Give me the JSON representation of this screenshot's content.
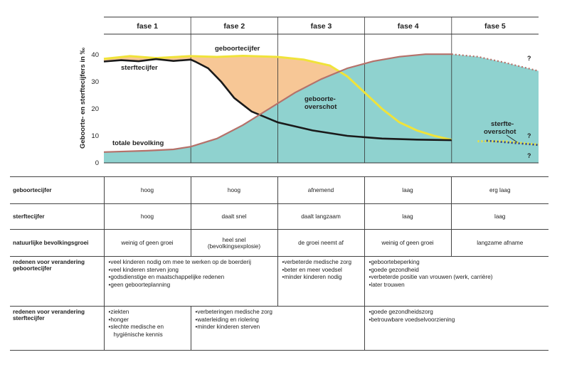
{
  "chart_data": {
    "type": "area",
    "phases": [
      "fase 1",
      "fase 2",
      "fase 3",
      "fase 4",
      "fase 5"
    ],
    "ylabel": "Geboorte- en sterftecijfers in ‰",
    "yticks": [
      0,
      10,
      20,
      30,
      40
    ],
    "ylim": [
      0,
      45
    ],
    "xlim": [
      0,
      5
    ],
    "series": [
      {
        "name": "geboortecijfer",
        "points": [
          [
            0,
            38.5
          ],
          [
            0.3,
            39.5
          ],
          [
            0.6,
            38.8
          ],
          [
            1,
            39.5
          ],
          [
            1.3,
            39.2
          ],
          [
            1.6,
            39.6
          ],
          [
            2,
            39.2
          ],
          [
            2.3,
            38.2
          ],
          [
            2.6,
            36
          ],
          [
            2.8,
            32
          ],
          [
            3,
            26
          ],
          [
            3.2,
            20
          ],
          [
            3.4,
            15
          ],
          [
            3.6,
            12
          ],
          [
            3.8,
            10
          ],
          [
            4,
            8.5
          ],
          [
            4.3,
            8
          ],
          [
            4.6,
            8
          ],
          [
            4.8,
            7.4
          ],
          [
            5,
            6.8
          ]
        ]
      },
      {
        "name": "sterftecijfer",
        "points": [
          [
            0,
            37.5
          ],
          [
            0.2,
            38
          ],
          [
            0.4,
            37.6
          ],
          [
            0.6,
            38.4
          ],
          [
            0.8,
            37.7
          ],
          [
            1,
            38.2
          ],
          [
            1.05,
            37.5
          ],
          [
            1.2,
            35
          ],
          [
            1.35,
            30
          ],
          [
            1.5,
            24
          ],
          [
            1.7,
            19
          ],
          [
            2,
            15
          ],
          [
            2.4,
            12
          ],
          [
            2.8,
            10
          ],
          [
            3.2,
            9
          ],
          [
            3.6,
            8.6
          ],
          [
            4,
            8.4
          ],
          [
            4.4,
            8.2
          ],
          [
            4.7,
            7.4
          ],
          [
            5,
            6.6
          ]
        ]
      },
      {
        "name": "totale bevolking",
        "points": [
          [
            0,
            4
          ],
          [
            0.5,
            4.5
          ],
          [
            0.8,
            5
          ],
          [
            1,
            6
          ],
          [
            1.3,
            9
          ],
          [
            1.6,
            14
          ],
          [
            1.9,
            20
          ],
          [
            2.2,
            26
          ],
          [
            2.5,
            31
          ],
          [
            2.8,
            35
          ],
          [
            3.1,
            37.6
          ],
          [
            3.4,
            39.3
          ],
          [
            3.7,
            40.2
          ],
          [
            4,
            40.2
          ],
          [
            4.3,
            39.3
          ],
          [
            4.6,
            37.2
          ],
          [
            5,
            34
          ]
        ]
      }
    ],
    "annotations": [
      "geboortecijfer",
      "sterftecijfer",
      "geboorte-overschot",
      "sterfte-overschot",
      "totale bevolking",
      "?",
      "?",
      "?"
    ],
    "colors": {
      "birth_fill": "#f7c796",
      "birth_line": "#f0e33a",
      "death_line": "#1a1a1a",
      "population_fill": "#8fd2cf",
      "population_line": "#b5716a",
      "dots": "#2b3f8c"
    }
  },
  "labels": {
    "geboortecijfer": "geboortecijfer",
    "sterftecijfer": "sterftecijfer",
    "geboorte_overschot": [
      "geboorte-",
      "overschot"
    ],
    "sterfte_overschot": [
      "sterfte-",
      "overschot"
    ],
    "totale_bevolking": "totale bevolking",
    "question": "?"
  },
  "table": {
    "rows": [
      {
        "header": "geboortecijfer",
        "cells": [
          "hoog",
          "hoog",
          "afnemend",
          "laag",
          "erg laag"
        ]
      },
      {
        "header": "sterftecijfer",
        "cells": [
          "hoog",
          "daalt snel",
          "daalt langzaam",
          "laag",
          "laag"
        ]
      },
      {
        "header": "natuurlijke bevolkingsgroei",
        "cells": [
          "weinig of geen groei",
          "heel snel (bevolkingsexplosie)",
          "de groei neemt af",
          "weinig of geen groei",
          "langzame afname"
        ]
      },
      {
        "header": "redenen voor verandering geboortecijfer",
        "groups": [
          {
            "items": [
              "veel kinderen nodig om mee te werken op de boerderij",
              "veel kinderen sterven jong",
              "godsdienstige en maatschappelijke redenen",
              "geen geboorteplanning"
            ]
          },
          {
            "items": [
              "verbeterde medische zorg",
              "beter en meer voedsel",
              "minder kinderen nodig"
            ]
          },
          {
            "items": [
              "geboortebeperking",
              "goede gezondheid",
              "verbeterde positie van vrouwen (werk, carrière)",
              "later trouwen"
            ]
          }
        ]
      },
      {
        "header": "redenen voor verandering sterftecijfer",
        "groups": [
          {
            "items": [
              "ziekten",
              "honger",
              "slechte medische en hygiënische kennis"
            ]
          },
          {
            "items": [
              "verbeteringen medische zorg",
              "waterleiding en riolering",
              "minder kinderen sterven"
            ]
          },
          {
            "items": [
              "goede gezondheidszorg",
              "betrouwbare voedselvoorziening"
            ]
          }
        ]
      }
    ]
  }
}
